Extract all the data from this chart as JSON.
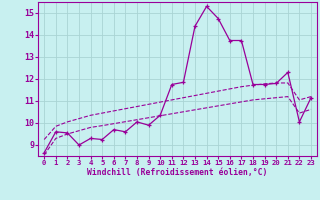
{
  "xlabel": "Windchill (Refroidissement éolien,°C)",
  "bg_color": "#c8f0f0",
  "line_color": "#990099",
  "grid_color": "#aad4d4",
  "xlim": [
    -0.5,
    23.5
  ],
  "ylim": [
    8.5,
    15.5
  ],
  "yticks": [
    9,
    10,
    11,
    12,
    13,
    14,
    15
  ],
  "xticks": [
    0,
    1,
    2,
    3,
    4,
    5,
    6,
    7,
    8,
    9,
    10,
    11,
    12,
    13,
    14,
    15,
    16,
    17,
    18,
    19,
    20,
    21,
    22,
    23
  ],
  "series1_x": [
    0,
    1,
    2,
    3,
    4,
    5,
    6,
    7,
    8,
    9,
    10,
    11,
    12,
    13,
    14,
    15,
    16,
    17,
    18,
    19,
    20,
    21,
    22,
    23
  ],
  "series1_y": [
    8.65,
    9.6,
    9.55,
    9.0,
    9.3,
    9.25,
    9.7,
    9.6,
    10.05,
    9.9,
    10.35,
    11.75,
    11.85,
    14.4,
    15.3,
    14.75,
    13.75,
    13.75,
    11.75,
    11.75,
    11.8,
    12.3,
    10.05,
    11.15
  ],
  "series2_x": [
    0,
    1,
    2,
    3,
    4,
    5,
    6,
    7,
    8,
    9,
    10,
    11,
    12,
    13,
    14,
    15,
    16,
    17,
    18,
    19,
    20,
    21,
    22,
    23
  ],
  "series2_y": [
    9.25,
    9.85,
    10.05,
    10.2,
    10.35,
    10.45,
    10.55,
    10.65,
    10.75,
    10.85,
    10.95,
    11.05,
    11.15,
    11.25,
    11.35,
    11.45,
    11.55,
    11.65,
    11.72,
    11.78,
    11.82,
    11.82,
    11.05,
    11.2
  ],
  "series3_x": [
    0,
    1,
    2,
    3,
    4,
    5,
    6,
    7,
    8,
    9,
    10,
    11,
    12,
    13,
    14,
    15,
    16,
    17,
    18,
    19,
    20,
    21,
    22,
    23
  ],
  "series3_y": [
    8.55,
    9.3,
    9.5,
    9.65,
    9.8,
    9.88,
    9.97,
    10.06,
    10.15,
    10.24,
    10.33,
    10.42,
    10.51,
    10.6,
    10.69,
    10.78,
    10.87,
    10.96,
    11.05,
    11.1,
    11.15,
    11.2,
    10.45,
    10.62
  ]
}
